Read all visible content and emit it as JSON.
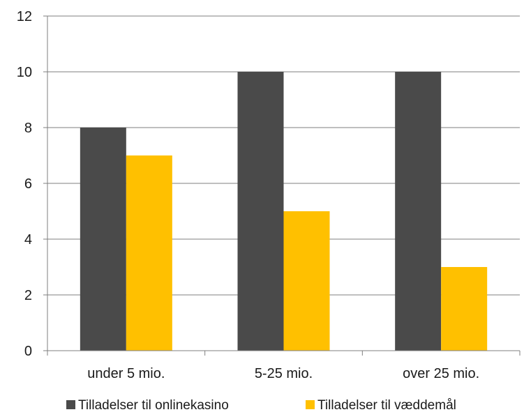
{
  "chart_data": {
    "type": "bar",
    "categories": [
      "under 5 mio.",
      "5-25 mio.",
      "over 25 mio."
    ],
    "series": [
      {
        "name": "Tilladelser til onlinekasino",
        "values": [
          8,
          10,
          10
        ],
        "color": "#4a4a4a"
      },
      {
        "name": "Tilladelser til væddemål",
        "values": [
          7,
          5,
          3
        ],
        "color": "#ffc000"
      }
    ],
    "ylim": [
      0,
      12
    ],
    "yticks": [
      0,
      2,
      4,
      6,
      8,
      10,
      12
    ],
    "grid": true,
    "legend_position": "bottom",
    "gridline_color": "#7f7f7f",
    "axis_color": "#7f7f7f"
  }
}
